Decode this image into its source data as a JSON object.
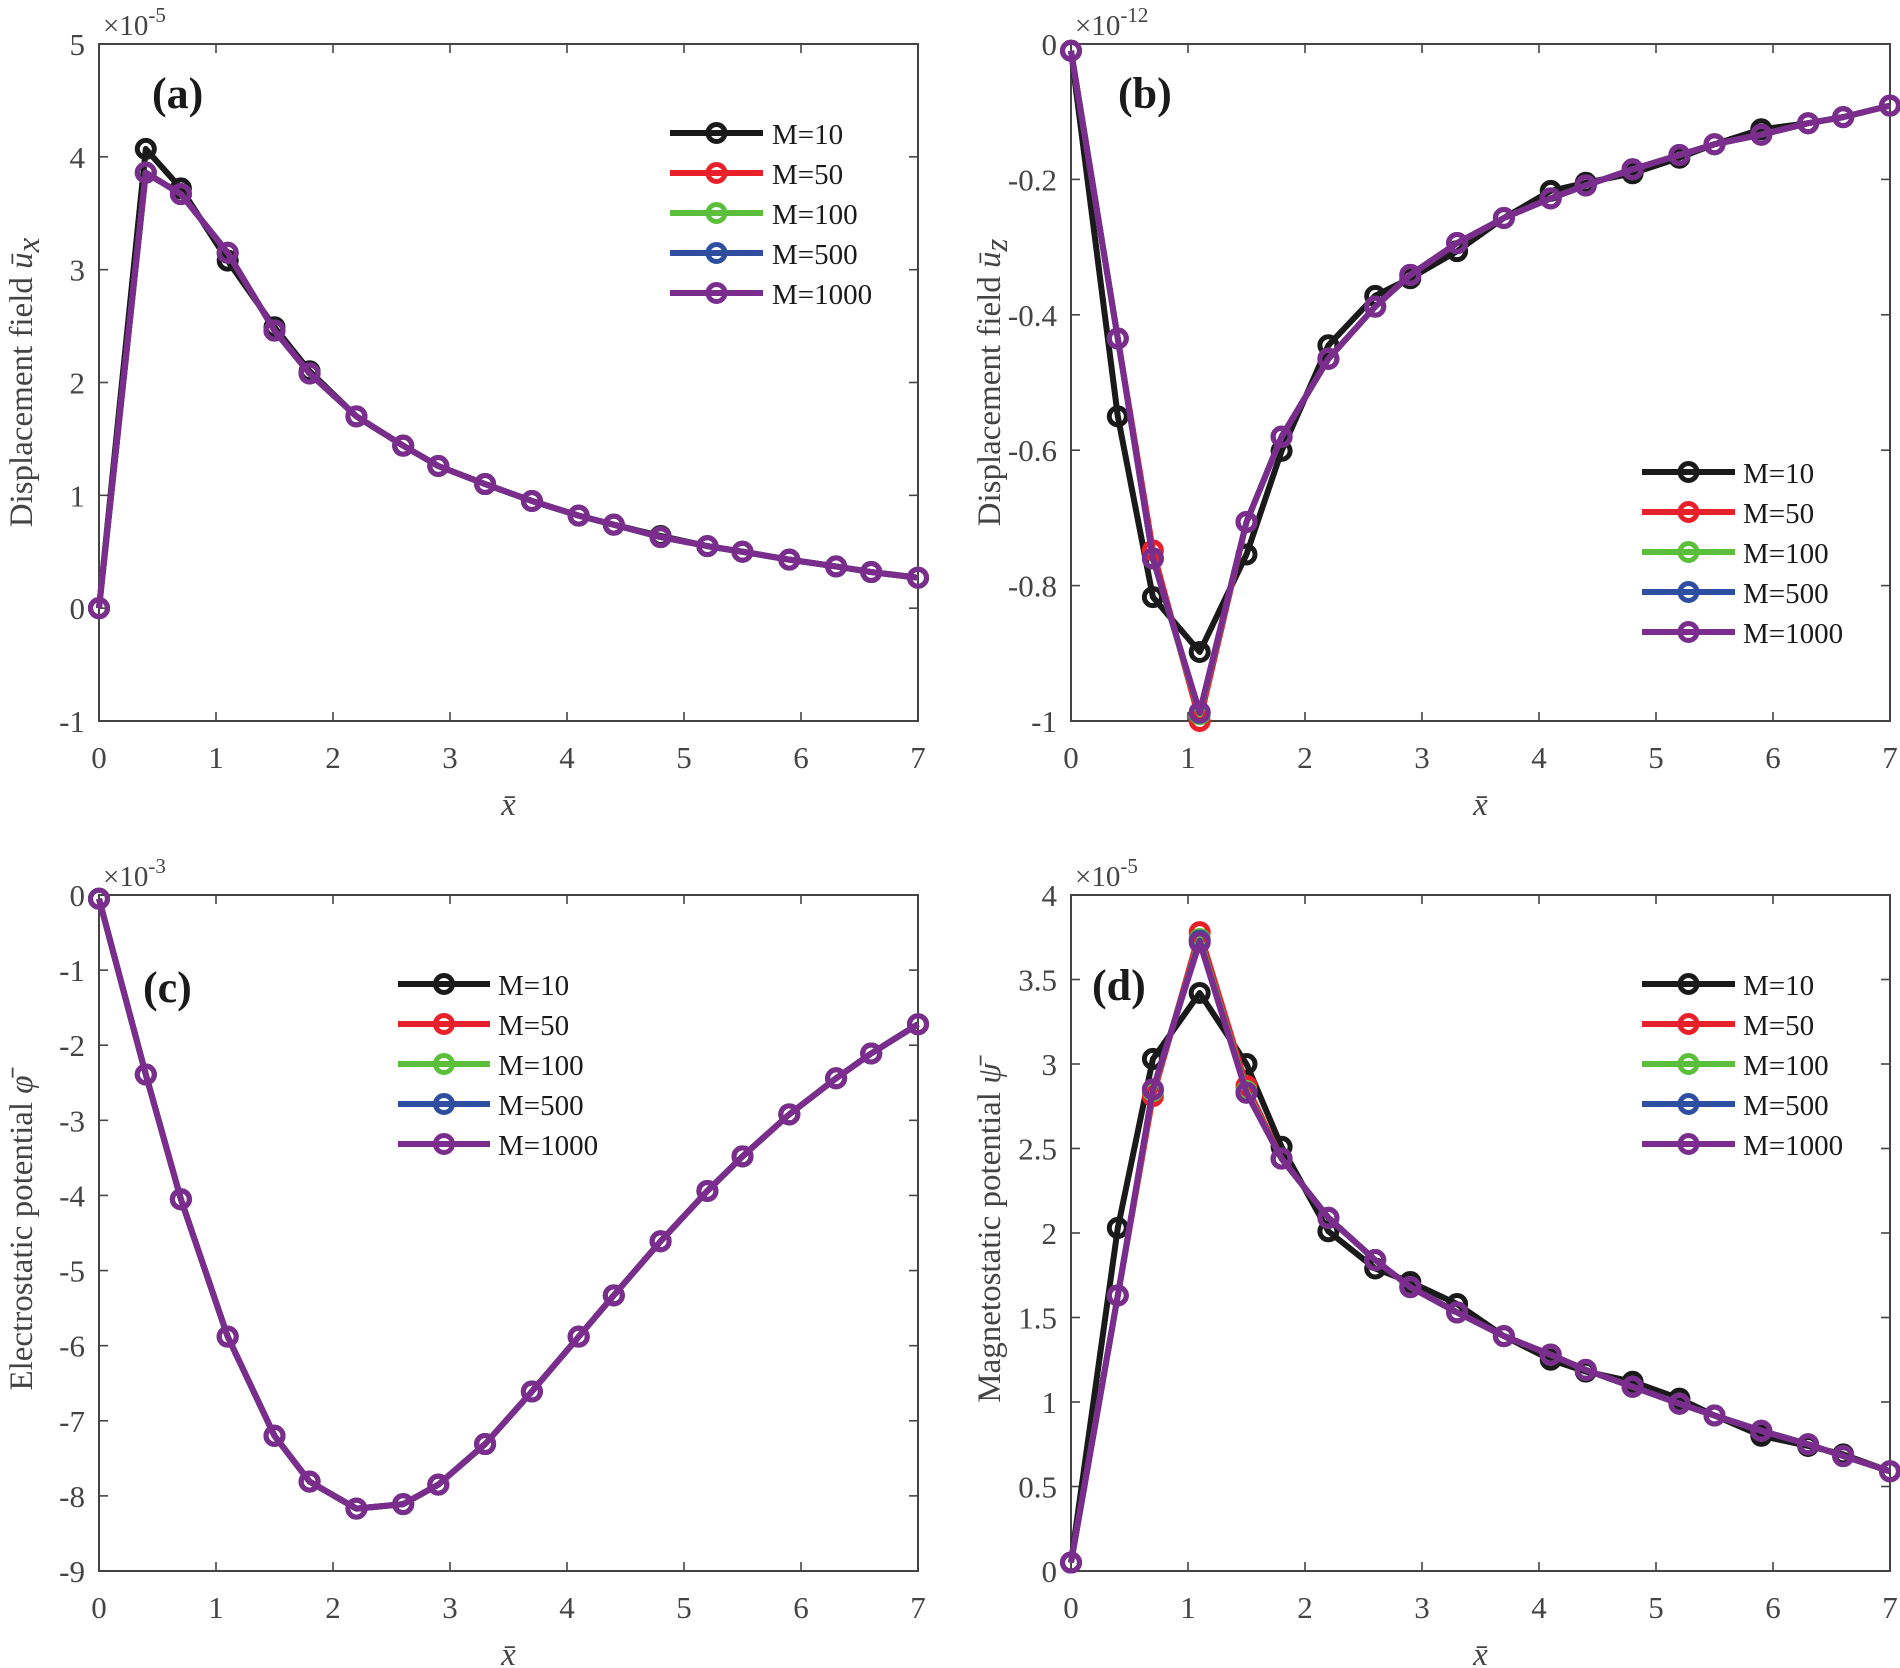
{
  "chart_data": [
    {
      "id": "a",
      "type": "line",
      "panel_label": "(a)",
      "ylabel": "Displacement field ",
      "ylabel_math": "ū",
      "ylabel_sub": "x",
      "xlabel": "x̄",
      "y_multiplier": "×10",
      "y_multiplier_exp": "-5",
      "xlim": [
        0,
        7
      ],
      "ylim": [
        -1,
        5
      ],
      "xticks": [
        0,
        1,
        2,
        3,
        4,
        5,
        6,
        7
      ],
      "yticks": [
        -1,
        0,
        1,
        2,
        3,
        4,
        5
      ],
      "ytick_labels": [
        "-1",
        "0",
        "1",
        "2",
        "3",
        "4",
        "5"
      ],
      "legend_position": "top-right",
      "x": [
        0,
        0.4,
        0.7,
        1.1,
        1.5,
        1.8,
        2.2,
        2.6,
        2.9,
        3.3,
        3.7,
        4.1,
        4.4,
        4.8,
        5.2,
        5.5,
        5.9,
        6.3,
        6.6,
        7.0
      ],
      "series": [
        {
          "name": "M=10",
          "color": "#1a1a1a",
          "values": [
            0,
            4.07,
            3.72,
            3.08,
            2.49,
            2.1,
            1.7,
            1.44,
            1.26,
            1.1,
            0.95,
            0.82,
            0.74,
            0.64,
            0.55,
            0.5,
            0.43,
            0.37,
            0.32,
            0.27
          ]
        },
        {
          "name": "M=50",
          "color": "#e8202a",
          "values": [
            0,
            3.86,
            3.67,
            3.15,
            2.46,
            2.08,
            1.7,
            1.44,
            1.26,
            1.1,
            0.95,
            0.82,
            0.74,
            0.63,
            0.55,
            0.5,
            0.43,
            0.37,
            0.32,
            0.27
          ]
        },
        {
          "name": "M=100",
          "color": "#5cbf3c",
          "values": [
            0,
            3.86,
            3.67,
            3.15,
            2.46,
            2.08,
            1.7,
            1.44,
            1.26,
            1.1,
            0.95,
            0.82,
            0.74,
            0.63,
            0.55,
            0.5,
            0.43,
            0.37,
            0.32,
            0.27
          ]
        },
        {
          "name": "M=500",
          "color": "#2e4fa0",
          "values": [
            0,
            3.86,
            3.67,
            3.15,
            2.46,
            2.08,
            1.7,
            1.44,
            1.26,
            1.1,
            0.95,
            0.82,
            0.74,
            0.63,
            0.55,
            0.5,
            0.43,
            0.37,
            0.32,
            0.27
          ]
        },
        {
          "name": "M=1000",
          "color": "#7b2d8e",
          "values": [
            0,
            3.86,
            3.67,
            3.15,
            2.46,
            2.08,
            1.7,
            1.44,
            1.26,
            1.1,
            0.95,
            0.82,
            0.74,
            0.63,
            0.55,
            0.5,
            0.43,
            0.37,
            0.32,
            0.27
          ]
        }
      ]
    },
    {
      "id": "b",
      "type": "line",
      "panel_label": "(b)",
      "ylabel": "Displacement field ",
      "ylabel_math": "ū",
      "ylabel_sub": "z",
      "xlabel": "x̄",
      "y_multiplier": "×10",
      "y_multiplier_exp": "-12",
      "xlim": [
        0,
        7
      ],
      "ylim": [
        -1,
        0
      ],
      "xticks": [
        0,
        1,
        2,
        3,
        4,
        5,
        6,
        7
      ],
      "yticks": [
        -1,
        -0.8,
        -0.6,
        -0.4,
        -0.2,
        0
      ],
      "ytick_labels": [
        "-1",
        "-0.8",
        "-0.6",
        "-0.4",
        "-0.2",
        "0"
      ],
      "legend_position": "lower-right",
      "x": [
        0,
        0.4,
        0.7,
        1.1,
        1.5,
        1.8,
        2.2,
        2.6,
        2.9,
        3.3,
        3.7,
        4.1,
        4.4,
        4.8,
        5.2,
        5.5,
        5.9,
        6.3,
        6.6,
        7.0
      ],
      "series": [
        {
          "name": "M=10",
          "color": "#1a1a1a",
          "values": [
            -0.01,
            -0.55,
            -0.817,
            -0.898,
            -0.754,
            -0.601,
            -0.445,
            -0.372,
            -0.346,
            -0.306,
            -0.257,
            -0.217,
            -0.205,
            -0.191,
            -0.168,
            -0.148,
            -0.126,
            -0.117,
            -0.108,
            -0.091
          ]
        },
        {
          "name": "M=50",
          "color": "#e8202a",
          "values": [
            -0.01,
            -0.435,
            -0.748,
            -1.0,
            -0.706,
            -0.58,
            -0.465,
            -0.388,
            -0.341,
            -0.294,
            -0.257,
            -0.228,
            -0.209,
            -0.185,
            -0.164,
            -0.148,
            -0.134,
            -0.117,
            -0.108,
            -0.091
          ]
        },
        {
          "name": "M=100",
          "color": "#5cbf3c",
          "values": [
            -0.01,
            -0.435,
            -0.76,
            -0.99,
            -0.706,
            -0.58,
            -0.465,
            -0.388,
            -0.341,
            -0.294,
            -0.257,
            -0.228,
            -0.209,
            -0.185,
            -0.164,
            -0.148,
            -0.134,
            -0.117,
            -0.108,
            -0.091
          ]
        },
        {
          "name": "M=500",
          "color": "#2e4fa0",
          "values": [
            -0.01,
            -0.435,
            -0.76,
            -0.988,
            -0.706,
            -0.58,
            -0.465,
            -0.388,
            -0.341,
            -0.294,
            -0.257,
            -0.228,
            -0.209,
            -0.185,
            -0.164,
            -0.148,
            -0.134,
            -0.117,
            -0.108,
            -0.091
          ]
        },
        {
          "name": "M=1000",
          "color": "#7b2d8e",
          "values": [
            -0.01,
            -0.435,
            -0.76,
            -0.987,
            -0.706,
            -0.58,
            -0.465,
            -0.388,
            -0.341,
            -0.294,
            -0.257,
            -0.228,
            -0.209,
            -0.185,
            -0.164,
            -0.148,
            -0.134,
            -0.117,
            -0.108,
            -0.091
          ]
        }
      ]
    },
    {
      "id": "c",
      "type": "line",
      "panel_label": "(c)",
      "ylabel": "Electrostatic potential ",
      "ylabel_math": "φ̄",
      "ylabel_sub": "",
      "xlabel": "x̄",
      "y_multiplier": "×10",
      "y_multiplier_exp": "-3",
      "xlim": [
        0,
        7
      ],
      "ylim": [
        -9,
        0
      ],
      "xticks": [
        0,
        1,
        2,
        3,
        4,
        5,
        6,
        7
      ],
      "yticks": [
        -9,
        -8,
        -7,
        -6,
        -5,
        -4,
        -3,
        -2,
        -1,
        0
      ],
      "ytick_labels": [
        "-9",
        "-8",
        "-7",
        "-6",
        "-5",
        "-4",
        "-3",
        "-2",
        "-1",
        "0"
      ],
      "legend_position": "top-center",
      "x": [
        0,
        0.4,
        0.7,
        1.1,
        1.5,
        1.8,
        2.2,
        2.6,
        2.9,
        3.3,
        3.7,
        4.1,
        4.4,
        4.8,
        5.2,
        5.5,
        5.9,
        6.3,
        6.6,
        7.0
      ],
      "series": [
        {
          "name": "M=10",
          "color": "#1a1a1a",
          "values": [
            -0.05,
            -2.39,
            -4.05,
            -5.88,
            -7.2,
            -7.81,
            -8.17,
            -8.11,
            -7.85,
            -7.31,
            -6.61,
            -5.88,
            -5.33,
            -4.61,
            -3.94,
            -3.48,
            -2.92,
            -2.44,
            -2.11,
            -1.72
          ]
        },
        {
          "name": "M=50",
          "color": "#e8202a",
          "values": [
            -0.05,
            -2.39,
            -4.05,
            -5.88,
            -7.2,
            -7.81,
            -8.17,
            -8.11,
            -7.85,
            -7.31,
            -6.61,
            -5.88,
            -5.33,
            -4.61,
            -3.94,
            -3.48,
            -2.92,
            -2.44,
            -2.11,
            -1.72
          ]
        },
        {
          "name": "M=100",
          "color": "#5cbf3c",
          "values": [
            -0.05,
            -2.39,
            -4.05,
            -5.88,
            -7.2,
            -7.81,
            -8.17,
            -8.11,
            -7.85,
            -7.31,
            -6.61,
            -5.88,
            -5.33,
            -4.61,
            -3.94,
            -3.48,
            -2.92,
            -2.44,
            -2.11,
            -1.72
          ]
        },
        {
          "name": "M=500",
          "color": "#2e4fa0",
          "values": [
            -0.05,
            -2.39,
            -4.05,
            -5.88,
            -7.2,
            -7.81,
            -8.17,
            -8.11,
            -7.85,
            -7.31,
            -6.61,
            -5.88,
            -5.33,
            -4.61,
            -3.94,
            -3.48,
            -2.92,
            -2.44,
            -2.11,
            -1.72
          ]
        },
        {
          "name": "M=1000",
          "color": "#7b2d8e",
          "values": [
            -0.05,
            -2.39,
            -4.05,
            -5.88,
            -7.2,
            -7.81,
            -8.17,
            -8.11,
            -7.85,
            -7.31,
            -6.61,
            -5.88,
            -5.33,
            -4.61,
            -3.94,
            -3.48,
            -2.92,
            -2.44,
            -2.11,
            -1.72
          ]
        }
      ]
    },
    {
      "id": "d",
      "type": "line",
      "panel_label": "(d)",
      "ylabel": "Magnetostatic potential ",
      "ylabel_math": "ψ̄",
      "ylabel_sub": "",
      "xlabel": "x̄",
      "y_multiplier": "×10",
      "y_multiplier_exp": "-5",
      "xlim": [
        0,
        7
      ],
      "ylim": [
        0,
        4
      ],
      "xticks": [
        0,
        1,
        2,
        3,
        4,
        5,
        6,
        7
      ],
      "yticks": [
        0,
        0.5,
        1,
        1.5,
        2,
        2.5,
        3,
        3.5,
        4
      ],
      "ytick_labels": [
        "0",
        "0.5",
        "1",
        "1.5",
        "2",
        "2.5",
        "3",
        "3.5",
        "4"
      ],
      "legend_position": "top-right",
      "x": [
        0,
        0.4,
        0.7,
        1.1,
        1.5,
        1.8,
        2.2,
        2.6,
        2.9,
        3.3,
        3.7,
        4.1,
        4.4,
        4.8,
        5.2,
        5.5,
        5.9,
        6.3,
        6.6,
        7.0
      ],
      "series": [
        {
          "name": "M=10",
          "color": "#1a1a1a",
          "values": [
            0.05,
            2.03,
            3.03,
            3.42,
            3.0,
            2.51,
            2.01,
            1.79,
            1.71,
            1.58,
            1.39,
            1.25,
            1.18,
            1.12,
            1.02,
            0.92,
            0.8,
            0.74,
            0.69,
            0.59
          ]
        },
        {
          "name": "M=50",
          "color": "#e8202a",
          "values": [
            0.05,
            1.63,
            2.81,
            3.78,
            2.87,
            2.44,
            2.09,
            1.84,
            1.68,
            1.53,
            1.39,
            1.28,
            1.19,
            1.09,
            0.99,
            0.92,
            0.83,
            0.75,
            0.68,
            0.59
          ]
        },
        {
          "name": "M=100",
          "color": "#5cbf3c",
          "values": [
            0.05,
            1.63,
            2.84,
            3.74,
            2.84,
            2.44,
            2.09,
            1.84,
            1.68,
            1.53,
            1.39,
            1.28,
            1.19,
            1.09,
            0.99,
            0.92,
            0.83,
            0.75,
            0.68,
            0.59
          ]
        },
        {
          "name": "M=500",
          "color": "#2e4fa0",
          "values": [
            0.05,
            1.63,
            2.85,
            3.73,
            2.83,
            2.44,
            2.09,
            1.84,
            1.68,
            1.53,
            1.39,
            1.28,
            1.19,
            1.09,
            0.99,
            0.92,
            0.83,
            0.75,
            0.68,
            0.59
          ]
        },
        {
          "name": "M=1000",
          "color": "#7b2d8e",
          "values": [
            0.05,
            1.63,
            2.85,
            3.72,
            2.83,
            2.44,
            2.09,
            1.84,
            1.68,
            1.53,
            1.39,
            1.28,
            1.19,
            1.09,
            0.99,
            0.92,
            0.83,
            0.75,
            0.68,
            0.59
          ]
        }
      ]
    }
  ]
}
